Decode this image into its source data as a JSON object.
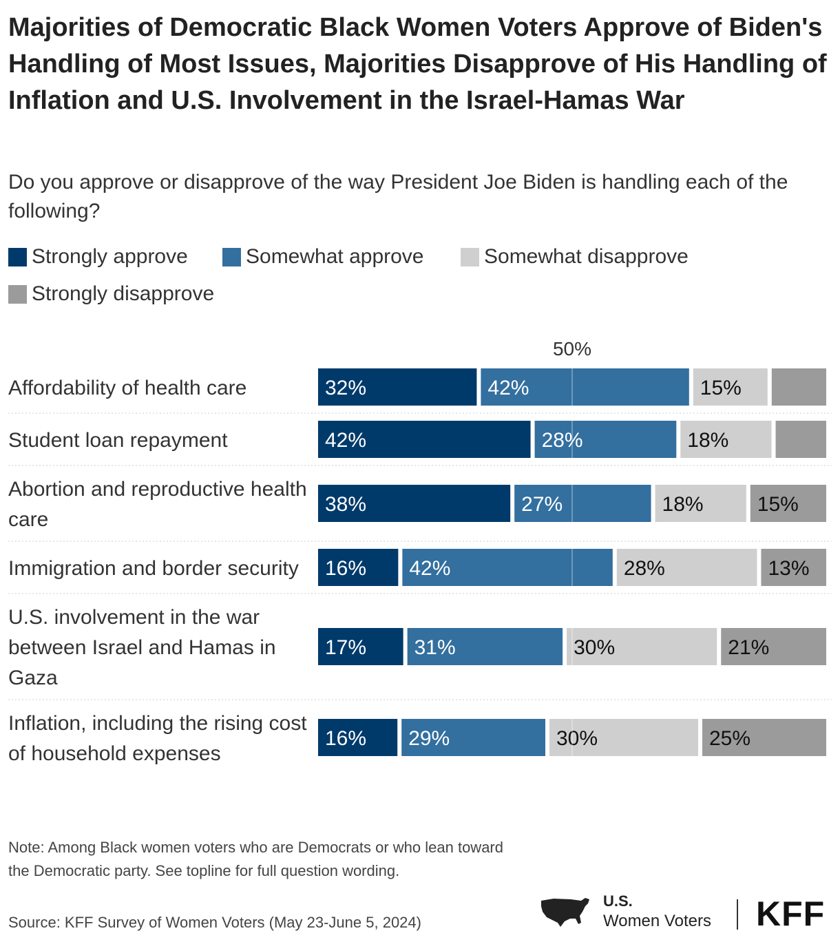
{
  "chart_data": {
    "type": "bar",
    "orientation": "horizontal",
    "stacked": true,
    "title": "Majorities of Democratic Black Women Voters Approve of Biden's Handling of Most Issues, Majorities Disapprove of His Handling of Inflation and U.S. Involvement in the Israel-Hamas War",
    "subtitle": "Do you approve or disapprove of the way President Joe Biden is handling each of the following?",
    "reference_label": "50%",
    "reference_value": 50,
    "xlim": [
      0,
      100
    ],
    "categories": [
      "Affordability of health care",
      "Student loan repayment",
      "Abortion and reproductive health care",
      "Immigration and border security",
      "U.S. involvement in the war between Israel and Hamas in Gaza",
      "Inflation, including the rising cost of household expenses"
    ],
    "series": [
      {
        "name": "Strongly approve",
        "color": "#003a6b",
        "values": [
          32,
          42,
          38,
          16,
          17,
          16
        ],
        "labels": [
          "32%",
          "42%",
          "38%",
          "16%",
          "17%",
          "16%"
        ]
      },
      {
        "name": "Somewhat approve",
        "color": "#336f9f",
        "values": [
          42,
          28,
          27,
          42,
          31,
          29
        ],
        "labels": [
          "42%",
          "28%",
          "27%",
          "42%",
          "31%",
          "29%"
        ]
      },
      {
        "name": "Somewhat disapprove",
        "color": "#cfcfcf",
        "values": [
          15,
          18,
          18,
          28,
          30,
          30
        ],
        "labels": [
          "15%",
          "18%",
          "18%",
          "28%",
          "30%",
          "30%"
        ]
      },
      {
        "name": "Strongly disapprove",
        "color": "#9b9b9b",
        "values": [
          11,
          10,
          15,
          13,
          21,
          25
        ],
        "labels": [
          "",
          "",
          "15%",
          "13%",
          "21%",
          "25%"
        ]
      }
    ],
    "note": "Note: Among Black women voters who are Democrats or who lean toward the Democratic party. See topline for full question wording.",
    "source": "Source: KFF Survey of Women Voters (May 23-June 5, 2024)"
  },
  "branding": {
    "line1": "U.S.",
    "line2": "Women Voters",
    "logo": "KFF"
  }
}
